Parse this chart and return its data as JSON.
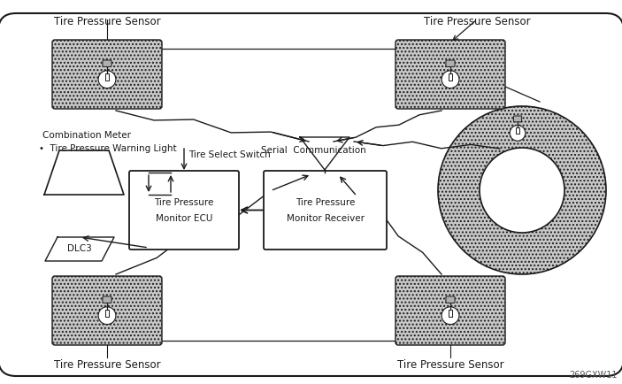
{
  "bg_color": "#ffffff",
  "line_color": "#1a1a1a",
  "box_fill": "#c8c8c8",
  "box_fill_dotted": "#c0c0c0",
  "watermark": "269GXW11",
  "labels": {
    "tps_top_left": "Tire Pressure Sensor",
    "tps_top_right": "Tire Pressure Sensor",
    "tps_bot_left": "Tire Pressure Sensor",
    "tps_bot_right": "Tire Pressure Sensor",
    "combo_meter_line1": "Combination Meter",
    "combo_meter_line2": "•  Tire Pressure Warning Light",
    "tire_select": "Tire Select Switch",
    "serial_comm": "Serial  Communication",
    "ecu_line1": "Tire Pressure",
    "ecu_line2": "Monitor ECU",
    "recv_line1": "Tire Pressure",
    "recv_line2": "Monitor Receiver",
    "dlc3": "DLC3"
  },
  "figsize": [
    7.03,
    4.34
  ],
  "dpi": 100
}
